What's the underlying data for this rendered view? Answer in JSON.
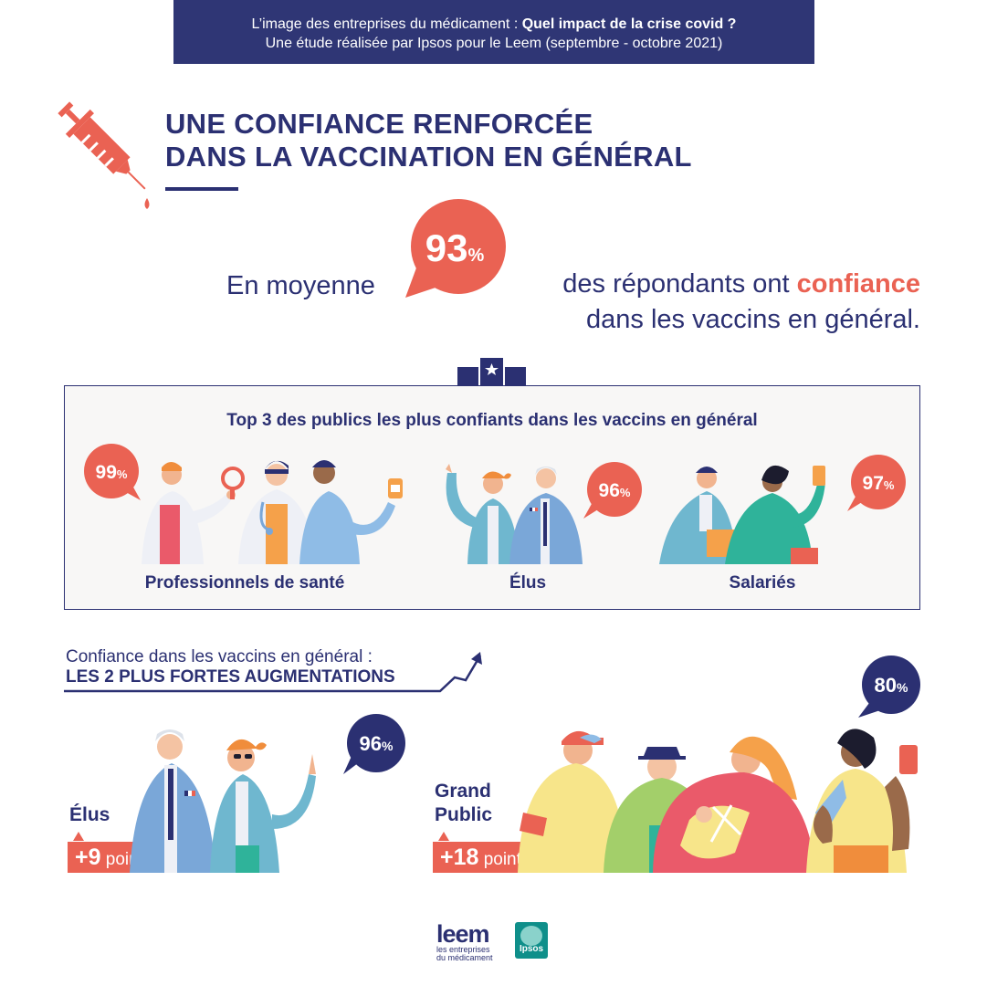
{
  "banner": {
    "line1_prefix": "L’image des entreprises du médicament : ",
    "line1_bold": "Quel impact de la crise covid ?",
    "line2": "Une étude réalisée par Ipsos pour le Leem (septembre - octobre 2021)"
  },
  "title": {
    "line1": "UNE CONFIANCE RENFORCÉE",
    "line2": "DANS LA VACCINATION EN GÉNÉRAL"
  },
  "average": {
    "prefix": "En moyenne",
    "value": "93",
    "unit": "%",
    "line1_text": "des répondants ont ",
    "line1_highlight": "confiance",
    "line2": "dans les vaccins en général."
  },
  "top3": {
    "title": "Top 3 des publics les plus confiants dans les vaccins en général",
    "items": [
      {
        "label": "Professionnels de santé",
        "value": "99",
        "unit": "%"
      },
      {
        "label": "Élus",
        "value": "96",
        "unit": "%"
      },
      {
        "label": "Salariés",
        "value": "97",
        "unit": "%"
      }
    ]
  },
  "increase": {
    "label": "Confiance dans les vaccins en général :",
    "strong": "LES 2 PLUS FORTES AUGMENTATIONS",
    "groups": [
      {
        "name": "Élus",
        "value": "96",
        "unit": "%",
        "points_value": "+9",
        "points_label": " points"
      },
      {
        "name_line1": "Grand",
        "name_line2": "Public",
        "value": "80",
        "unit": "%",
        "points_value": "+18",
        "points_label": " points"
      }
    ]
  },
  "logos": {
    "leem": "leem",
    "leem_sub1": "les entreprises",
    "leem_sub2": "du médicament",
    "ipsos": "Ipsos"
  },
  "colors": {
    "navy": "#2b3072",
    "coral": "#ea6253"
  }
}
